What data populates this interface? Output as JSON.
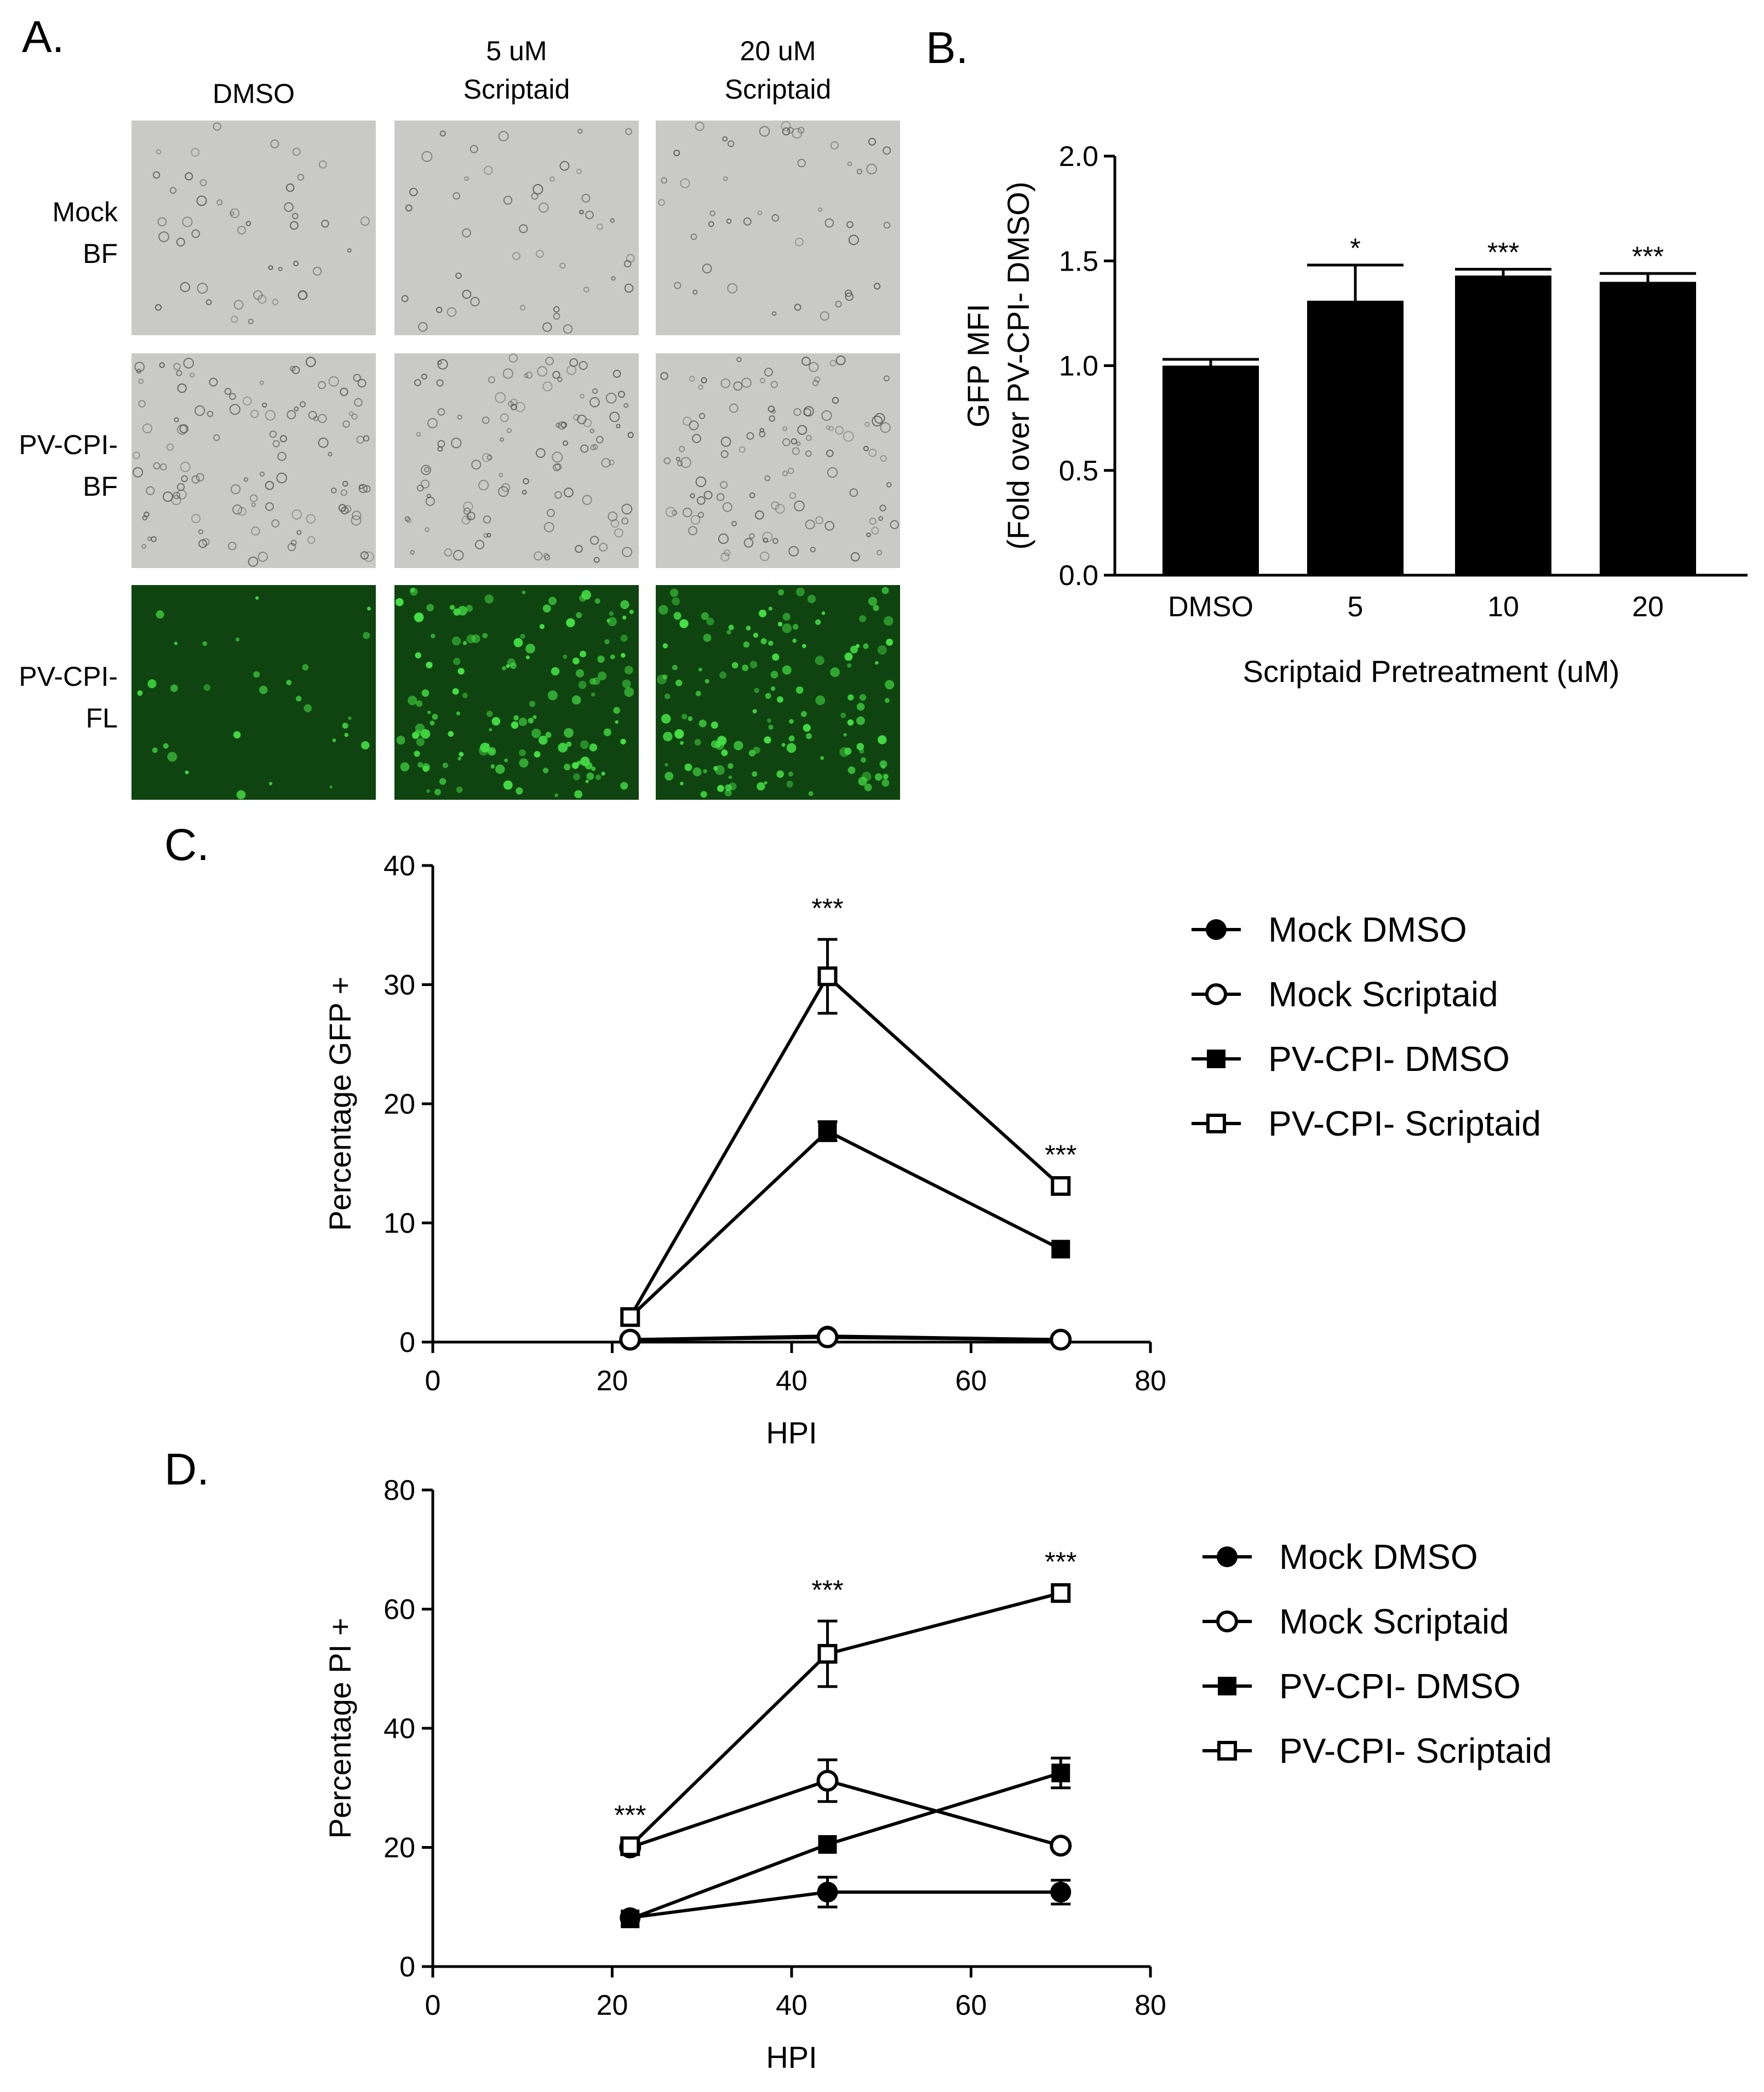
{
  "panel_a": {
    "letter": "A.",
    "columns": [
      {
        "line1": "DMSO",
        "line2": ""
      },
      {
        "line1": "5 uM",
        "line2": "Scriptaid"
      },
      {
        "line1": "20 uM",
        "line2": "Scriptaid"
      }
    ],
    "rows": [
      {
        "line1": "Mock",
        "line2": "BF",
        "kind": "bf"
      },
      {
        "line1": "PV-CPI-",
        "line2": "BF",
        "kind": "bf"
      },
      {
        "line1": "PV-CPI-",
        "line2": "FL",
        "kind": "fl"
      }
    ],
    "colors": {
      "bf_background": "#c9c9c7",
      "fl_background": "#0f4410",
      "fl_cells": "#45e045"
    }
  },
  "chart_data": [
    {
      "panel": "B.",
      "type": "bar",
      "categories": [
        "DMSO",
        "5",
        "10",
        "20"
      ],
      "values": [
        1.0,
        1.31,
        1.43,
        1.4
      ],
      "errors": [
        0.03,
        0.17,
        0.03,
        0.04
      ],
      "annotations": [
        "",
        "*",
        "***",
        "***"
      ],
      "xlabel": "Scriptaid Pretreatment (uM)",
      "ylabel_line1": "GFP MFI",
      "ylabel_line2": "(Fold over PV-CPI- DMSO)",
      "ylim": [
        0,
        2.0
      ],
      "yticks": [
        "0.0",
        "0.5",
        "1.0",
        "1.5",
        "2.0"
      ],
      "bar_color": "#000000"
    },
    {
      "panel": "C.",
      "type": "line",
      "xlabel": "HPI",
      "ylabel": "Percentage GFP +",
      "xlim": [
        0,
        80
      ],
      "ylim": [
        0,
        40
      ],
      "xticks": [
        "0",
        "20",
        "40",
        "60",
        "80"
      ],
      "yticks": [
        "0",
        "10",
        "20",
        "30",
        "40"
      ],
      "x": [
        22,
        44,
        70
      ],
      "series": [
        {
          "name": "Mock DMSO",
          "marker": "filled-circle",
          "values": [
            0.2,
            0.5,
            0.2
          ],
          "errors": [
            0,
            0,
            0
          ]
        },
        {
          "name": "Mock Scriptaid",
          "marker": "open-circle",
          "values": [
            0.2,
            0.4,
            0.2
          ],
          "errors": [
            0,
            0,
            0
          ]
        },
        {
          "name": "PV-CPI- DMSO",
          "marker": "filled-square",
          "values": [
            2.1,
            17.7,
            7.8
          ],
          "errors": [
            0,
            0.8,
            0
          ]
        },
        {
          "name": "PV-CPI- Scriptaid",
          "marker": "open-square",
          "values": [
            2.1,
            30.7,
            13.1
          ],
          "errors": [
            0,
            3.1,
            0
          ]
        }
      ],
      "annotations": [
        {
          "x": 44,
          "y": 33.8,
          "text": "***"
        },
        {
          "x": 70,
          "y": 13.1,
          "text": "***"
        }
      ],
      "legend_position": "right"
    },
    {
      "panel": "D.",
      "type": "line",
      "xlabel": "HPI",
      "ylabel": "Percentage PI +",
      "xlim": [
        0,
        80
      ],
      "ylim": [
        0,
        80
      ],
      "xticks": [
        "0",
        "20",
        "40",
        "60",
        "80"
      ],
      "yticks": [
        "0",
        "20",
        "40",
        "60",
        "80"
      ],
      "x": [
        22,
        44,
        70
      ],
      "series": [
        {
          "name": "Mock DMSO",
          "marker": "filled-circle",
          "values": [
            8.2,
            12.5,
            12.5
          ],
          "errors": [
            0,
            2.5,
            2.0
          ]
        },
        {
          "name": "Mock Scriptaid",
          "marker": "open-circle",
          "values": [
            20.0,
            31.2,
            20.3
          ],
          "errors": [
            0,
            3.5,
            0
          ]
        },
        {
          "name": "PV-CPI- DMSO",
          "marker": "filled-square",
          "values": [
            8.0,
            20.5,
            32.5
          ],
          "errors": [
            0,
            0,
            2.5
          ]
        },
        {
          "name": "PV-CPI- Scriptaid",
          "marker": "open-square",
          "values": [
            20.2,
            52.5,
            62.7
          ],
          "errors": [
            0,
            5.5,
            0
          ]
        }
      ],
      "annotations": [
        {
          "x": 22,
          "y": 20.2,
          "text": "***"
        },
        {
          "x": 44,
          "y": 58.0,
          "text": "***"
        },
        {
          "x": 70,
          "y": 62.7,
          "text": "***"
        }
      ],
      "legend_position": "right"
    }
  ]
}
